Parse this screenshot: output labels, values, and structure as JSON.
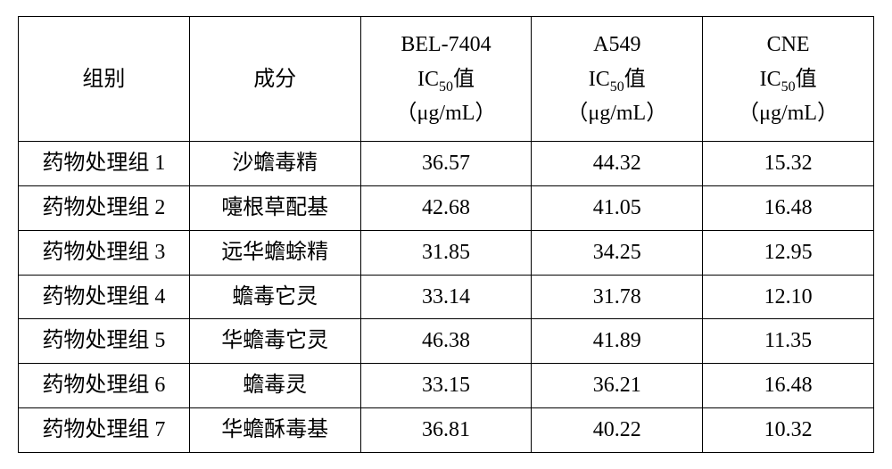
{
  "table": {
    "columns": [
      {
        "id": "group",
        "label_line1": "组别",
        "label_line2": "",
        "label_line3": ""
      },
      {
        "id": "component",
        "label_line1": "成分",
        "label_line2": "",
        "label_line3": ""
      },
      {
        "id": "bel7404",
        "label_line1": "BEL-7404",
        "ic_prefix": "IC",
        "ic_sub": "50",
        "ic_suffix": "值",
        "unit": "（μg/mL）",
        "unit_inline": true
      },
      {
        "id": "a549",
        "label_line1": "A549",
        "ic_prefix": "IC",
        "ic_sub": "50",
        "ic_suffix": "值",
        "unit": "（μg/mL）",
        "unit_inline": false
      },
      {
        "id": "cne",
        "label_line1": "CNE",
        "ic_prefix": "IC",
        "ic_sub": "50",
        "ic_suffix": "值",
        "unit": "（μg/mL）",
        "unit_inline": false
      }
    ],
    "rows": [
      {
        "group": "药物处理组 1",
        "component": "沙蟾毒精",
        "bel7404": "36.57",
        "a549": "44.32",
        "cne": "15.32"
      },
      {
        "group": "药物处理组 2",
        "component": "嚏根草配基",
        "bel7404": "42.68",
        "a549": "41.05",
        "cne": "16.48"
      },
      {
        "group": "药物处理组 3",
        "component": "远华蟾蜍精",
        "bel7404": "31.85",
        "a549": "34.25",
        "cne": "12.95"
      },
      {
        "group": "药物处理组 4",
        "component": "蟾毒它灵",
        "bel7404": "33.14",
        "a549": "31.78",
        "cne": "12.10"
      },
      {
        "group": "药物处理组 5",
        "component": "华蟾毒它灵",
        "bel7404": "46.38",
        "a549": "41.89",
        "cne": "11.35"
      },
      {
        "group": "药物处理组 6",
        "component": "蟾毒灵",
        "bel7404": "33.15",
        "a549": "36.21",
        "cne": "16.48"
      },
      {
        "group": "药物处理组 7",
        "component": "华蟾酥毒基",
        "bel7404": "36.81",
        "a549": "40.22",
        "cne": "10.32"
      }
    ],
    "style": {
      "border_color": "#000000",
      "border_width": 1.5,
      "font_family": "SimSun",
      "header_fontsize": 24,
      "cell_fontsize": 24,
      "sub_fontsize": 16,
      "text_color": "#000000",
      "background_color": "#ffffff",
      "column_widths_pct": [
        20,
        20,
        20,
        20,
        20
      ],
      "align": "center"
    }
  }
}
